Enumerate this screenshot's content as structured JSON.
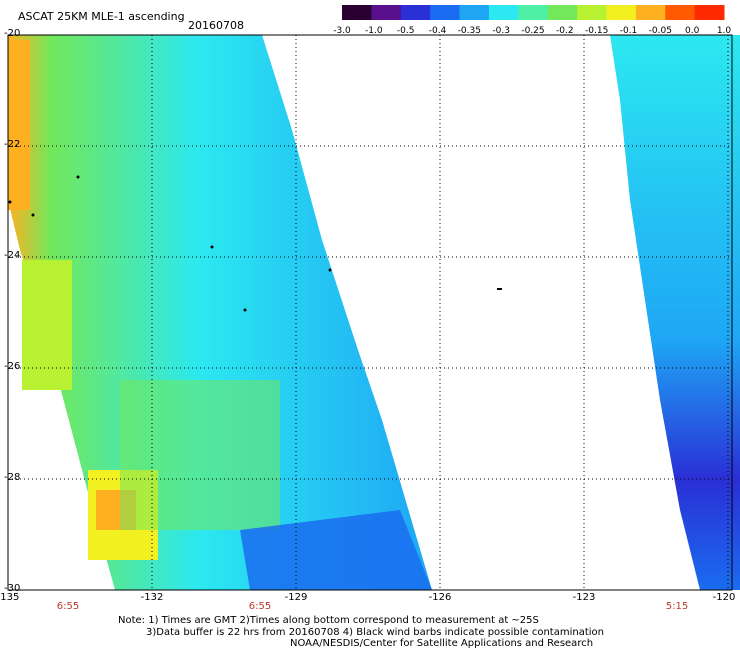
{
  "header": {
    "title": "ASCAT 25KM MLE-1 ascending",
    "date": "20160708"
  },
  "colorbar": {
    "labels": [
      "-3.0",
      "-1.0",
      "-0.5",
      "-0.4",
      "-0.35",
      "-0.3",
      "-0.25",
      "-0.2",
      "-0.15",
      "-0.1",
      "-0.05",
      "0.0",
      "1.0"
    ],
    "colors": [
      "#2a0030",
      "#5a0f8c",
      "#2a2fd6",
      "#1a6cf0",
      "#1ea6f5",
      "#2ce8f0",
      "#4df0a4",
      "#72e85a",
      "#b8f032",
      "#f2f020",
      "#ffb020",
      "#ff5a00",
      "#ff2a00"
    ]
  },
  "axes": {
    "x_ticks": [
      "-135",
      "-132",
      "-129",
      "-126",
      "-123",
      "-120"
    ],
    "y_ticks": [
      "-20",
      "-22",
      "-24",
      "-26",
      "-28",
      "-30"
    ]
  },
  "times": [
    "6:55",
    "6:55",
    "5:15"
  ],
  "notes": {
    "line1": "Note: 1) Times are GMT 2)Times along bottom correspond to measurement at ~25S",
    "line2": "3)Data buffer is 22 hrs from 20160708 4) Black wind barbs indicate possible contamination",
    "line3": "NOAA/NESDIS/Center for Satellite Applications and Research"
  }
}
